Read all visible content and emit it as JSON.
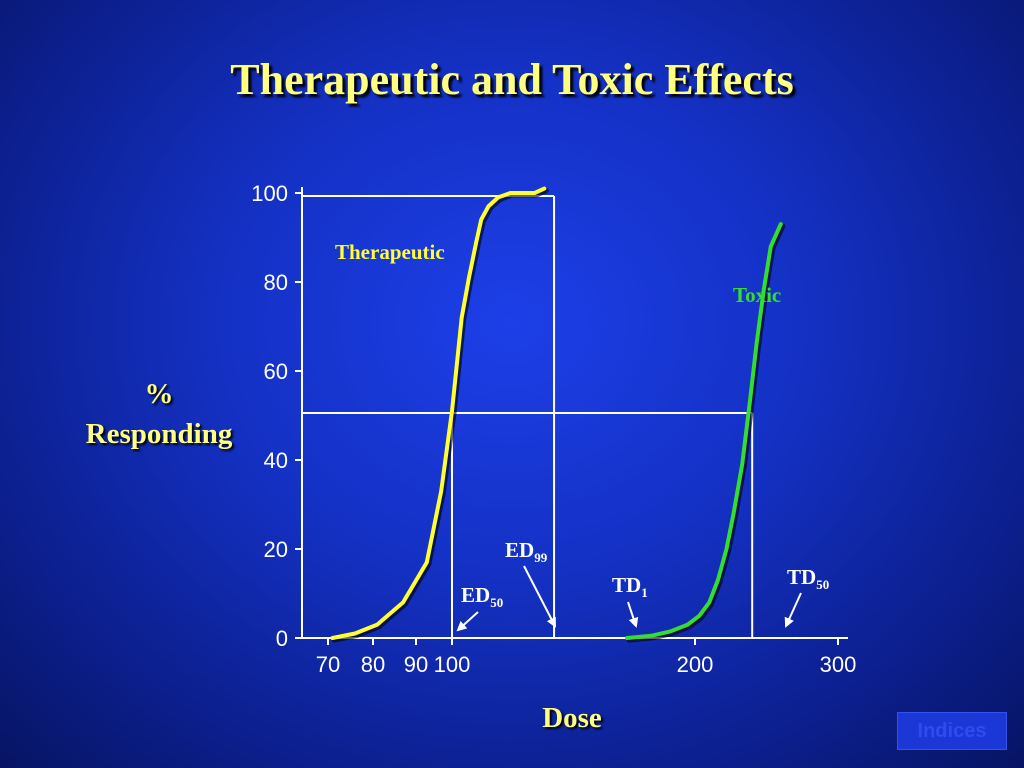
{
  "slide": {
    "title": "Therapeutic and Toxic Effects",
    "ylabel_line1": "%",
    "ylabel_line2": "Responding",
    "xlabel": "Dose",
    "indices_button": "Indices"
  },
  "chart_data": {
    "type": "line",
    "title": "Therapeutic and Toxic Effects",
    "xlabel": "Dose",
    "ylabel": "% Responding",
    "xlim": [
      60,
      310
    ],
    "ylim": [
      0,
      100
    ],
    "x_ticks": [
      70,
      80,
      90,
      100,
      200,
      300
    ],
    "x_tick_labels": [
      "70",
      "80",
      "90",
      "100",
      "200",
      "300"
    ],
    "y_ticks": [
      0,
      20,
      40,
      60,
      80,
      100
    ],
    "y_tick_labels": [
      "0",
      "20",
      "40",
      "60",
      "80",
      "100"
    ],
    "grid": false,
    "series": [
      {
        "name": "Therapeutic",
        "color": "#ffff33",
        "x": [
          71,
          76,
          81,
          87,
          93,
          97,
          100,
          104,
          107,
          110,
          112,
          115,
          119,
          124,
          129,
          134,
          138
        ],
        "y": [
          0,
          1,
          3,
          8,
          17,
          33,
          51,
          72,
          81,
          89,
          94,
          97,
          99,
          100,
          100,
          100,
          101
        ]
      },
      {
        "name": "Toxic",
        "color": "#33dd33",
        "x": [
          172,
          182,
          190,
          197,
          203,
          210,
          216,
          222,
          227,
          233,
          238,
          243,
          248,
          253,
          260
        ],
        "y": [
          0,
          0.5,
          1.5,
          3,
          5,
          8,
          13,
          20,
          28,
          39,
          52,
          66,
          78,
          88,
          93
        ]
      }
    ],
    "reference_lines": {
      "ed50": {
        "x": 100,
        "y": 51
      },
      "ed99": {
        "x": 142,
        "y": 100
      },
      "td50": {
        "x": 240,
        "y": 51
      },
      "hline_top_y": 100,
      "hline_mid_y": 51
    },
    "annotations": [
      {
        "id": "ed50",
        "main": "ED",
        "sub": "50",
        "arrow_to_x": 100
      },
      {
        "id": "ed99",
        "main": "ED",
        "sub": "99",
        "arrow_to_x": 142
      },
      {
        "id": "td1",
        "main": "TD",
        "sub": "1",
        "arrow_to_x": 172
      },
      {
        "id": "td50",
        "main": "TD",
        "sub": "50",
        "arrow_to_x": 240
      }
    ]
  }
}
